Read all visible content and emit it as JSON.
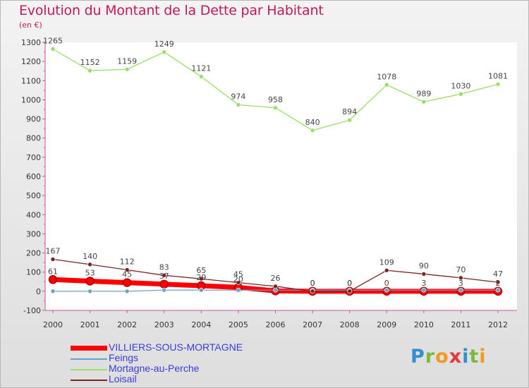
{
  "title": "Evolution du Montant de la Dette par Habitant",
  "unit": "(en €)",
  "logo": {
    "letters": [
      "P",
      "r",
      "o",
      "x",
      "i",
      "t",
      "i"
    ],
    "colors": [
      "#2f8fcf",
      "#7cba3b",
      "#f29a1e",
      "#e8323c",
      "#2f8fcf",
      "#7cba3b",
      "#f29a1e"
    ]
  },
  "chart_data": {
    "type": "line",
    "x": [
      "2000",
      "2001",
      "2002",
      "2003",
      "2004",
      "2005",
      "2006",
      "2007",
      "2008",
      "2009",
      "2010",
      "2011",
      "2012"
    ],
    "ylim": [
      -100,
      1300
    ],
    "yticks": [
      -100,
      0,
      100,
      200,
      300,
      400,
      500,
      600,
      700,
      800,
      900,
      1000,
      1100,
      1200,
      1300
    ],
    "grid": false,
    "legend": "bottom-left",
    "series": [
      {
        "name": "VILLIERS-SOUS-MORTAGNE",
        "color": "#ff0000",
        "values": [
          61,
          53,
          45,
          37,
          29,
          20,
          2,
          0,
          0,
          0,
          0,
          0,
          0
        ],
        "labels": [
          "61",
          "53",
          "45",
          "37",
          "29",
          "20",
          "",
          "",
          "",
          "",
          "",
          "",
          ""
        ],
        "thick": true
      },
      {
        "name": "Feings",
        "color": "#6aa0cc",
        "values": [
          0,
          0,
          0,
          6,
          6,
          6,
          6,
          6,
          6,
          6,
          6,
          6,
          6
        ],
        "labels": [
          "",
          "",
          "",
          "",
          "",
          "",
          "",
          "",
          "",
          "",
          "",
          "",
          ""
        ]
      },
      {
        "name": "Mortagne-au-Perche",
        "color": "#99dd66",
        "values": [
          1265,
          1152,
          1159,
          1249,
          1121,
          974,
          958,
          840,
          894,
          1078,
          989,
          1030,
          1081
        ],
        "labels": [
          "1265",
          "1152",
          "1159",
          "1249",
          "1121",
          "974",
          "958",
          "840",
          "894",
          "1078",
          "989",
          "1030",
          "1081"
        ]
      },
      {
        "name": "Loisail",
        "color": "#7a2424",
        "values": [
          167,
          140,
          112,
          83,
          65,
          45,
          26,
          0,
          0,
          109,
          90,
          70,
          47
        ],
        "labels": [
          "167",
          "140",
          "112",
          "83",
          "65",
          "45",
          "26",
          "0",
          "0",
          "109",
          "90",
          "70",
          "47"
        ]
      }
    ],
    "overlap_labels": [
      "0",
      "0",
      "0",
      "3",
      "3",
      "2"
    ]
  }
}
